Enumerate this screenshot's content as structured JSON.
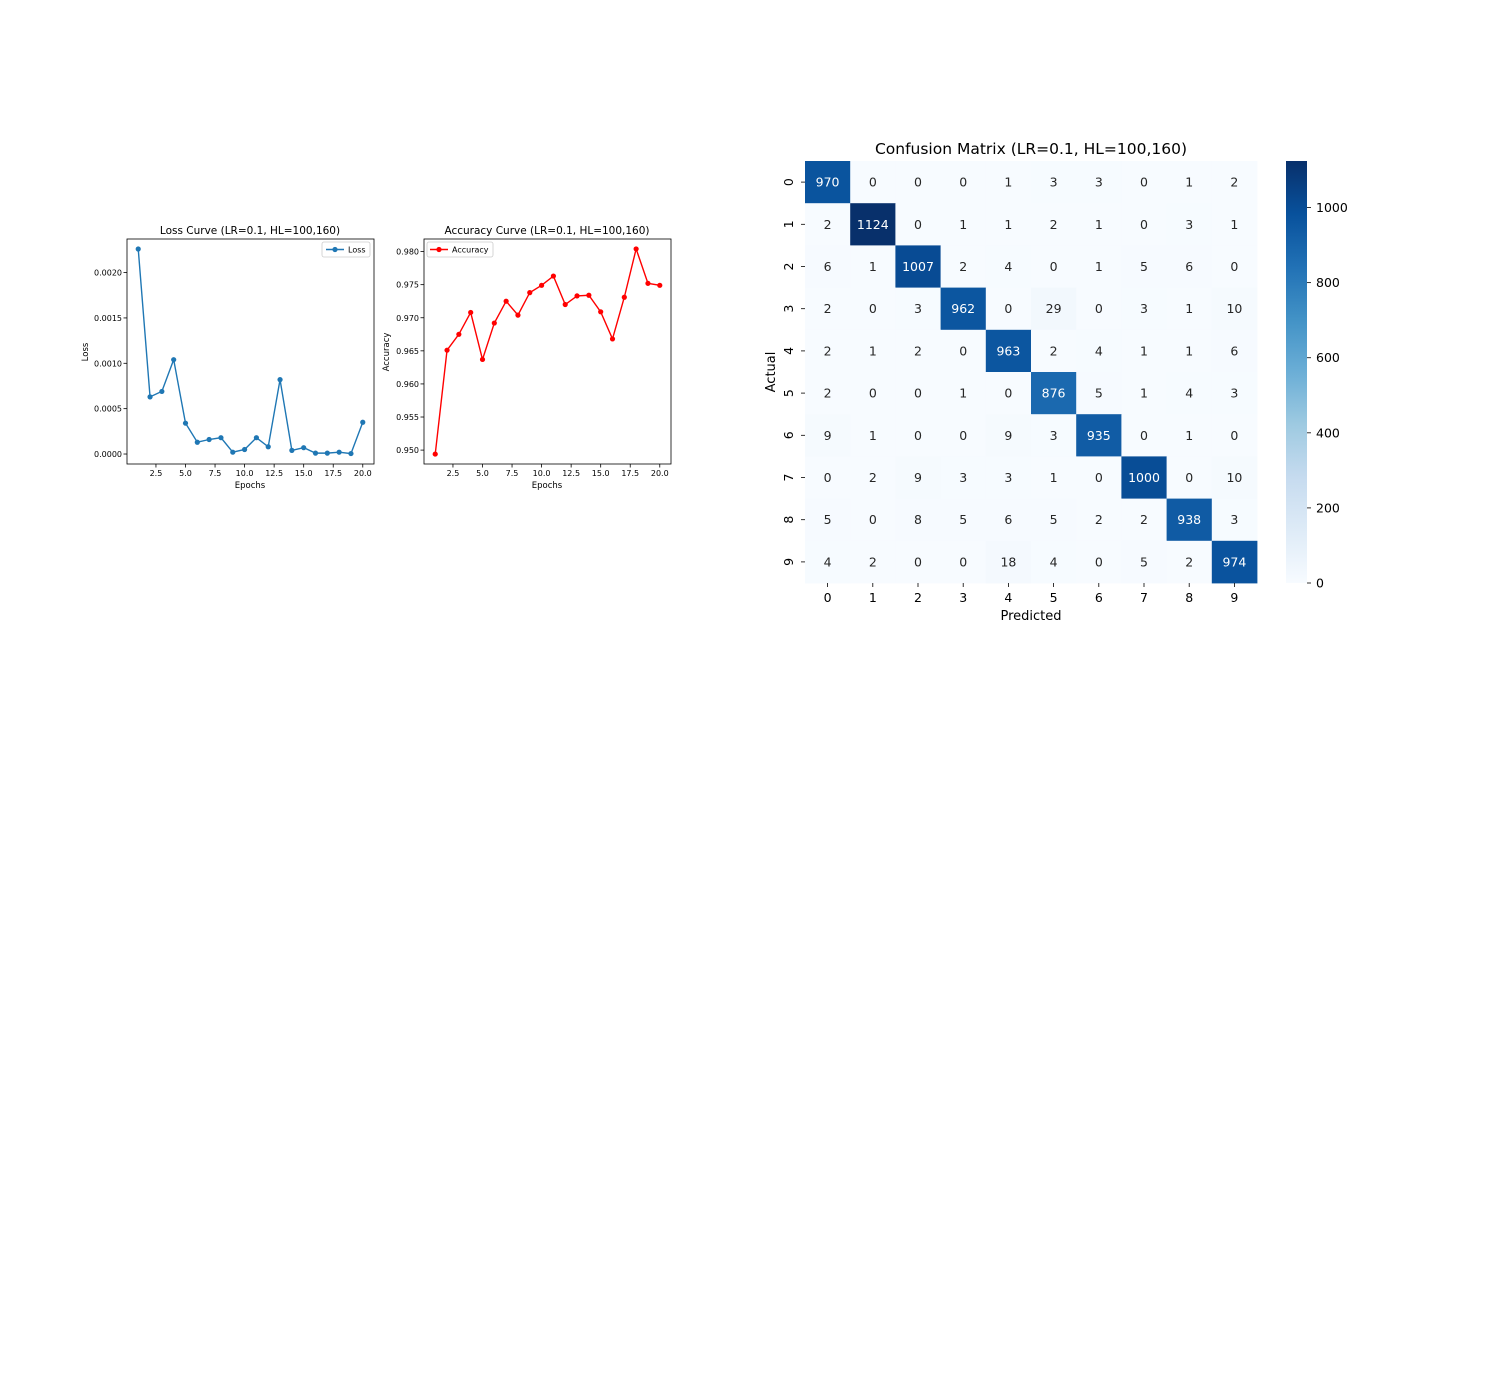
{
  "chart_data": [
    {
      "type": "line",
      "title": "Loss Curve (LR=0.1, HL=100,160)",
      "xlabel": "Epochs",
      "ylabel": "Loss",
      "x": [
        1,
        2,
        3,
        4,
        5,
        6,
        7,
        8,
        9,
        10,
        11,
        12,
        13,
        14,
        15,
        16,
        17,
        18,
        19,
        20
      ],
      "series": [
        {
          "name": "Loss",
          "values": [
            0.00226,
            0.00063,
            0.00069,
            0.00104,
            0.00034,
            0.00013,
            0.00016,
            0.00018,
            2e-05,
            5e-05,
            0.00018,
            8e-05,
            0.00082,
            4e-05,
            7e-05,
            1e-05,
            1e-05,
            2e-05,
            5e-06,
            0.00035
          ],
          "color": "#1f77b4"
        }
      ],
      "xlim": [
        0.05,
        20.95
      ],
      "ylim": [
        -0.00011,
        0.00237
      ],
      "xticks": [
        2.5,
        5.0,
        7.5,
        10.0,
        12.5,
        15.0,
        17.5,
        20.0
      ],
      "xtick_labels": [
        "2.5",
        "5.0",
        "7.5",
        "10.0",
        "12.5",
        "15.0",
        "17.5",
        "20.0"
      ],
      "yticks": [
        0.0,
        0.0005,
        0.001,
        0.0015,
        0.002
      ],
      "ytick_labels": [
        "0.0000",
        "0.0005",
        "0.0010",
        "0.0015",
        "0.0020"
      ],
      "legend": "top-right",
      "grid": false
    },
    {
      "type": "line",
      "title": "Accuracy Curve (LR=0.1, HL=100,160)",
      "xlabel": "Epochs",
      "ylabel": "Accuracy",
      "x": [
        1,
        2,
        3,
        4,
        5,
        6,
        7,
        8,
        9,
        10,
        11,
        12,
        13,
        14,
        15,
        16,
        17,
        18,
        19,
        20
      ],
      "series": [
        {
          "name": "Accuracy",
          "values": [
            0.9494,
            0.9651,
            0.9675,
            0.9708,
            0.9637,
            0.9692,
            0.9725,
            0.9704,
            0.9738,
            0.9749,
            0.9763,
            0.972,
            0.9733,
            0.9734,
            0.9709,
            0.9668,
            0.9731,
            0.9804,
            0.9752,
            0.9749
          ],
          "color": "#ff0000"
        }
      ],
      "xlim": [
        0.05,
        20.95
      ],
      "ylim": [
        0.9479,
        0.9819
      ],
      "xticks": [
        2.5,
        5.0,
        7.5,
        10.0,
        12.5,
        15.0,
        17.5,
        20.0
      ],
      "xtick_labels": [
        "2.5",
        "5.0",
        "7.5",
        "10.0",
        "12.5",
        "15.0",
        "17.5",
        "20.0"
      ],
      "yticks": [
        0.95,
        0.955,
        0.96,
        0.965,
        0.97,
        0.975,
        0.98
      ],
      "ytick_labels": [
        "0.950",
        "0.955",
        "0.960",
        "0.965",
        "0.970",
        "0.975",
        "0.980"
      ],
      "legend": "top-left",
      "grid": false
    },
    {
      "type": "heatmap",
      "title": "Confusion Matrix (LR=0.1, HL=100,160)",
      "xlabel": "Predicted",
      "ylabel": "Actual",
      "x_categories": [
        "0",
        "1",
        "2",
        "3",
        "4",
        "5",
        "6",
        "7",
        "8",
        "9"
      ],
      "y_categories": [
        "0",
        "1",
        "2",
        "3",
        "4",
        "5",
        "6",
        "7",
        "8",
        "9"
      ],
      "values": [
        [
          970,
          0,
          0,
          0,
          1,
          3,
          3,
          0,
          1,
          2
        ],
        [
          2,
          1124,
          0,
          1,
          1,
          2,
          1,
          0,
          3,
          1
        ],
        [
          6,
          1,
          1007,
          2,
          4,
          0,
          1,
          5,
          6,
          0
        ],
        [
          2,
          0,
          3,
          962,
          0,
          29,
          0,
          3,
          1,
          10
        ],
        [
          2,
          1,
          2,
          0,
          963,
          2,
          4,
          1,
          1,
          6
        ],
        [
          2,
          0,
          0,
          1,
          0,
          876,
          5,
          1,
          4,
          3
        ],
        [
          9,
          1,
          0,
          0,
          9,
          3,
          935,
          0,
          1,
          0
        ],
        [
          0,
          2,
          9,
          3,
          3,
          1,
          0,
          1000,
          0,
          10
        ],
        [
          5,
          0,
          8,
          5,
          6,
          5,
          2,
          2,
          938,
          3
        ],
        [
          4,
          2,
          0,
          0,
          18,
          4,
          0,
          5,
          2,
          974
        ]
      ],
      "colormap": "Blues",
      "vmin": 0,
      "vmax": 1124,
      "colorbar_ticks": [
        0,
        200,
        400,
        600,
        800,
        1000
      ],
      "colorbar_tick_labels": [
        "0",
        "200",
        "400",
        "600",
        "800",
        "1000"
      ]
    }
  ]
}
